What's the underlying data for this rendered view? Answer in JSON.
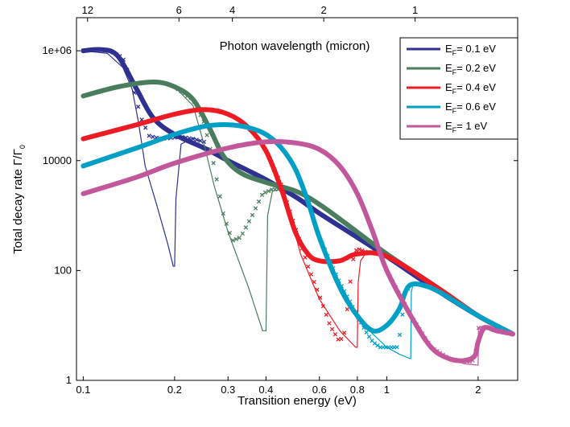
{
  "chart_data": {
    "type": "line",
    "xlabel": "Transition energy (eV)",
    "ylabel": "Total decay rate  Γ/Γ",
    "ylabel_subscript": "0",
    "top_axis_title": "Photon wavelength (micron)",
    "xscale": "log",
    "yscale": "log",
    "xlim": [
      0.095,
      2.7
    ],
    "ylim": [
      1,
      4000000
    ],
    "x_ticks": [
      {
        "value": 0.1,
        "label": "0.1"
      },
      {
        "value": 0.2,
        "label": "0.2"
      },
      {
        "value": 0.3,
        "label": "0.3"
      },
      {
        "value": 0.4,
        "label": "0.4"
      },
      {
        "value": 0.6,
        "label": "0.6"
      },
      {
        "value": 0.8,
        "label": "0.8"
      },
      {
        "value": 1,
        "label": "1"
      },
      {
        "value": 2,
        "label": "2"
      }
    ],
    "y_ticks": [
      {
        "value": 1,
        "label": "1"
      },
      {
        "value": 100,
        "label": "100"
      },
      {
        "value": 10000,
        "label": "10000"
      },
      {
        "value": 1000000,
        "label": "1e+06"
      }
    ],
    "top_ticks": [
      {
        "energy": 0.1033,
        "label": "12"
      },
      {
        "energy": 0.2067,
        "label": "6"
      },
      {
        "energy": 0.31,
        "label": "4"
      },
      {
        "energy": 0.62,
        "label": "2"
      },
      {
        "energy": 1.24,
        "label": "1"
      }
    ],
    "legend_position": "top-right",
    "legend_prefix": "E",
    "legend_subscript": "F",
    "series": [
      {
        "name": "= 0.1 eV",
        "color": "#2e3192",
        "smooth": [
          [
            0.1,
            1000000
          ],
          [
            0.115,
            1050000
          ],
          [
            0.13,
            800000
          ],
          [
            0.15,
            200000
          ],
          [
            0.17,
            60000
          ],
          [
            0.2,
            30000
          ],
          [
            0.25,
            17000
          ],
          [
            0.3,
            10000
          ],
          [
            0.4,
            4500
          ],
          [
            0.5,
            2200
          ],
          [
            0.6,
            1100
          ],
          [
            0.8,
            400
          ],
          [
            1,
            180
          ],
          [
            1.5,
            40
          ],
          [
            2,
            15
          ],
          [
            2.6,
            7
          ]
        ],
        "thin": [
          [
            0.1,
            1000000
          ],
          [
            0.12,
            900000
          ],
          [
            0.135,
            500000
          ],
          [
            0.145,
            200000
          ],
          [
            0.152,
            50000
          ],
          [
            0.16,
            8000
          ],
          [
            0.175,
            1500
          ],
          [
            0.19,
            300
          ],
          [
            0.198,
            120
          ],
          [
            0.2,
            120
          ],
          [
            0.202,
            2000
          ],
          [
            0.21,
            20000
          ],
          [
            0.23,
            26000
          ],
          [
            0.25,
            21000
          ]
        ],
        "markers": [
          [
            0.1,
            1000000
          ],
          [
            0.12,
            1050000
          ],
          [
            0.135,
            750000
          ],
          [
            0.145,
            250000
          ],
          [
            0.155,
            60000
          ],
          [
            0.165,
            28000
          ],
          [
            0.18,
            25000
          ],
          [
            0.195,
            26000
          ],
          [
            0.21,
            27000
          ],
          [
            0.23,
            25000
          ],
          [
            0.25,
            22000
          ]
        ]
      },
      {
        "name": "= 0.2 eV",
        "color": "#4a7c5e",
        "smooth": [
          [
            0.1,
            150000
          ],
          [
            0.13,
            220000
          ],
          [
            0.17,
            270000
          ],
          [
            0.2,
            220000
          ],
          [
            0.23,
            130000
          ],
          [
            0.26,
            40000
          ],
          [
            0.29,
            12000
          ],
          [
            0.33,
            6000
          ],
          [
            0.4,
            4000
          ],
          [
            0.5,
            2800
          ],
          [
            0.6,
            1600
          ],
          [
            0.8,
            500
          ],
          [
            1,
            200
          ],
          [
            1.5,
            45
          ],
          [
            2,
            15
          ],
          [
            2.6,
            7
          ]
        ],
        "thin": [
          [
            0.2,
            220000
          ],
          [
            0.23,
            100000
          ],
          [
            0.25,
            20000
          ],
          [
            0.27,
            3500
          ],
          [
            0.3,
            500
          ],
          [
            0.35,
            50
          ],
          [
            0.39,
            8
          ],
          [
            0.4,
            8
          ],
          [
            0.405,
            1000
          ],
          [
            0.42,
            2800
          ],
          [
            0.45,
            3000
          ]
        ],
        "markers": [
          [
            0.2,
            220000
          ],
          [
            0.23,
            130000
          ],
          [
            0.25,
            50000
          ],
          [
            0.27,
            8000
          ],
          [
            0.29,
            1000
          ],
          [
            0.31,
            350
          ],
          [
            0.33,
            400
          ],
          [
            0.36,
            1000
          ],
          [
            0.39,
            2500
          ],
          [
            0.42,
            3000
          ],
          [
            0.45,
            3000
          ]
        ]
      },
      {
        "name": "= 0.4 eV",
        "color": "#ed1c24",
        "smooth": [
          [
            0.1,
            25000
          ],
          [
            0.15,
            45000
          ],
          [
            0.2,
            70000
          ],
          [
            0.25,
            85000
          ],
          [
            0.3,
            70000
          ],
          [
            0.35,
            40000
          ],
          [
            0.4,
            15000
          ],
          [
            0.45,
            3000
          ],
          [
            0.5,
            500
          ],
          [
            0.55,
            200
          ],
          [
            0.6,
            150
          ],
          [
            0.7,
            150
          ],
          [
            0.8,
            200
          ],
          [
            1,
            180
          ],
          [
            1.5,
            45
          ],
          [
            2,
            15
          ],
          [
            2.6,
            7
          ]
        ],
        "thin": [
          [
            0.4,
            15000
          ],
          [
            0.46,
            2500
          ],
          [
            0.52,
            200
          ],
          [
            0.6,
            30
          ],
          [
            0.7,
            8
          ],
          [
            0.79,
            4
          ],
          [
            0.8,
            4
          ],
          [
            0.805,
            60
          ],
          [
            0.82,
            150
          ],
          [
            0.85,
            200
          ]
        ],
        "markers": [
          [
            0.4,
            15000
          ],
          [
            0.45,
            3500
          ],
          [
            0.5,
            600
          ],
          [
            0.55,
            120
          ],
          [
            0.6,
            35
          ],
          [
            0.65,
            10
          ],
          [
            0.7,
            5
          ],
          [
            0.73,
            8
          ],
          [
            0.75,
            40
          ],
          [
            0.78,
            200
          ],
          [
            0.8,
            250
          ],
          [
            0.85,
            220
          ]
        ]
      },
      {
        "name": "= 0.6 eV",
        "color": "#00a0c6",
        "smooth": [
          [
            0.1,
            8000
          ],
          [
            0.15,
            17000
          ],
          [
            0.2,
            30000
          ],
          [
            0.25,
            42000
          ],
          [
            0.3,
            45000
          ],
          [
            0.35,
            40000
          ],
          [
            0.4,
            30000
          ],
          [
            0.45,
            17000
          ],
          [
            0.5,
            7000
          ],
          [
            0.55,
            1800
          ],
          [
            0.6,
            400
          ],
          [
            0.7,
            50
          ],
          [
            0.8,
            15
          ],
          [
            0.9,
            8
          ],
          [
            1,
            10
          ],
          [
            1.1,
            20
          ],
          [
            1.15,
            40
          ],
          [
            1.2,
            55
          ],
          [
            1.3,
            55
          ],
          [
            1.5,
            40
          ],
          [
            2,
            15
          ],
          [
            2.6,
            7
          ]
        ],
        "thin": [
          [
            0.6,
            400
          ],
          [
            0.7,
            60
          ],
          [
            0.8,
            15
          ],
          [
            0.9,
            7
          ],
          [
            1.0,
            4
          ],
          [
            1.1,
            3
          ],
          [
            1.19,
            2.5
          ],
          [
            1.2,
            2.5
          ],
          [
            1.205,
            40
          ],
          [
            1.22,
            55
          ],
          [
            1.3,
            55
          ]
        ],
        "markers": [
          [
            0.6,
            400
          ],
          [
            0.7,
            60
          ],
          [
            0.8,
            15
          ],
          [
            0.85,
            8
          ],
          [
            0.9,
            5
          ],
          [
            0.95,
            4
          ],
          [
            1.0,
            4
          ],
          [
            1.05,
            4
          ],
          [
            1.08,
            4
          ],
          [
            1.1,
            6
          ],
          [
            1.12,
            12
          ],
          [
            1.15,
            40
          ],
          [
            1.2,
            55
          ]
        ]
      },
      {
        "name": "= 1 eV",
        "color": "#c2589b",
        "smooth": [
          [
            0.1,
            2500
          ],
          [
            0.15,
            5000
          ],
          [
            0.2,
            9000
          ],
          [
            0.3,
            17000
          ],
          [
            0.4,
            22000
          ],
          [
            0.5,
            21000
          ],
          [
            0.6,
            16000
          ],
          [
            0.7,
            8000
          ],
          [
            0.8,
            2500
          ],
          [
            0.9,
            500
          ],
          [
            1.0,
            100
          ],
          [
            1.2,
            15
          ],
          [
            1.4,
            4
          ],
          [
            1.6,
            2.5
          ],
          [
            1.8,
            2.3
          ],
          [
            1.95,
            2.8
          ],
          [
            2.0,
            5
          ],
          [
            2.1,
            9
          ],
          [
            2.3,
            8
          ],
          [
            2.6,
            7
          ]
        ],
        "thin": [
          [
            1.0,
            100
          ],
          [
            1.2,
            15
          ],
          [
            1.4,
            4
          ],
          [
            1.6,
            2.5
          ],
          [
            1.8,
            2
          ],
          [
            1.99,
            1.9
          ],
          [
            2.0,
            1.9
          ],
          [
            2.005,
            9
          ],
          [
            2.1,
            10
          ],
          [
            2.3,
            8
          ]
        ],
        "markers": [
          [
            1.0,
            100
          ],
          [
            1.2,
            15
          ],
          [
            1.4,
            4
          ],
          [
            1.6,
            2.5
          ],
          [
            1.8,
            2.2
          ],
          [
            1.9,
            2.2
          ],
          [
            1.95,
            2.5
          ],
          [
            1.97,
            4
          ],
          [
            1.99,
            7
          ],
          [
            2.0,
            9
          ],
          [
            2.1,
            9
          ]
        ]
      }
    ]
  }
}
